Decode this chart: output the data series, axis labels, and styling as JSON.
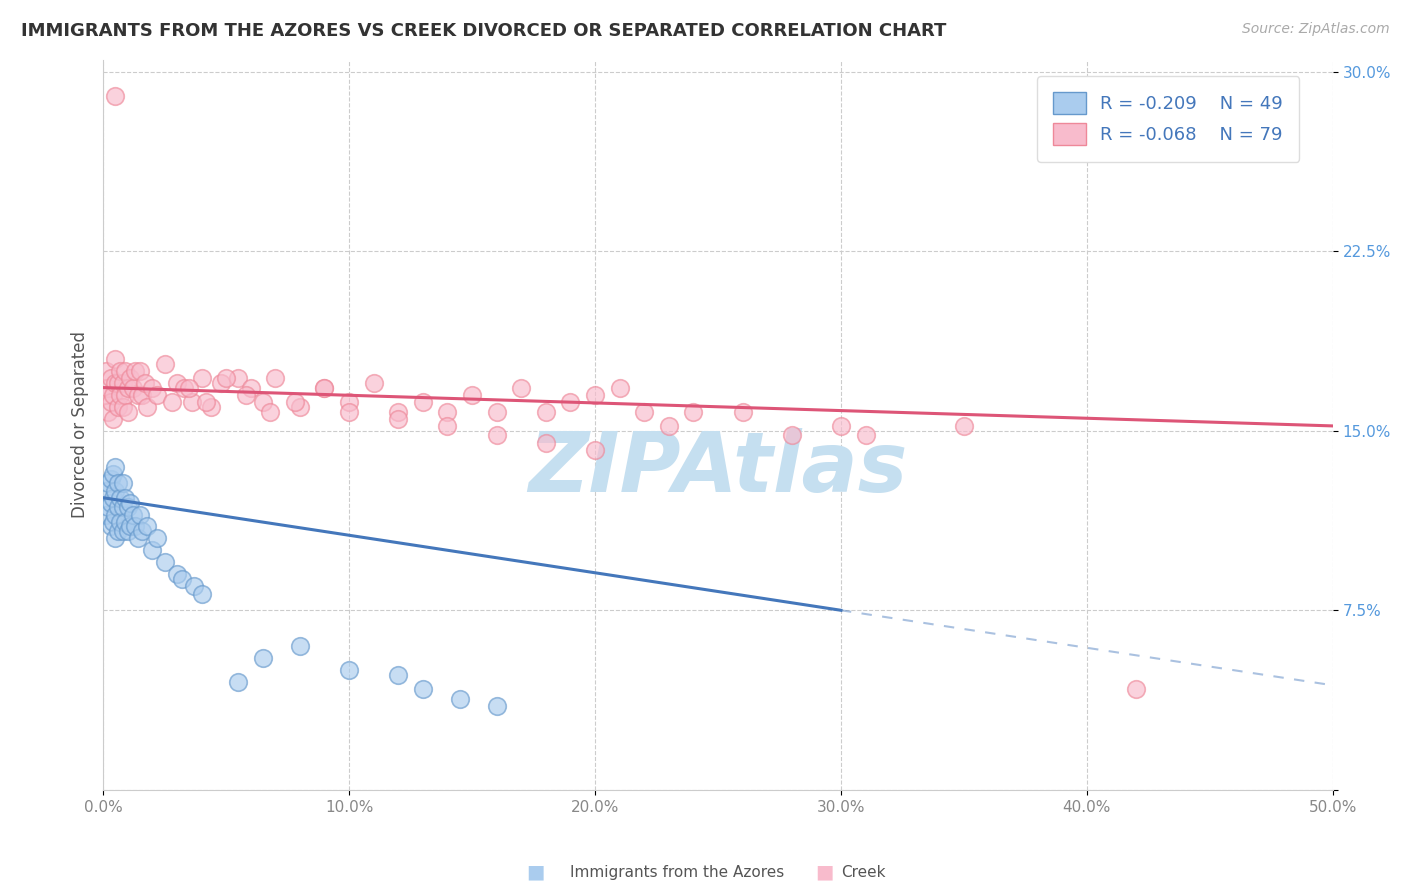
{
  "title": "IMMIGRANTS FROM THE AZORES VS CREEK DIVORCED OR SEPARATED CORRELATION CHART",
  "source_text": "Source: ZipAtlas.com",
  "ylabel": "Divorced or Separated",
  "xlim": [
    0.0,
    0.5
  ],
  "ylim": [
    0.0,
    0.305
  ],
  "xticks": [
    0.0,
    0.1,
    0.2,
    0.3,
    0.4,
    0.5
  ],
  "yticks": [
    0.0,
    0.075,
    0.15,
    0.225,
    0.3
  ],
  "xticklabels": [
    "0.0%",
    "10.0%",
    "20.0%",
    "30.0%",
    "40.0%",
    "50.0%"
  ],
  "yticklabels": [
    "",
    "7.5%",
    "15.0%",
    "22.5%",
    "30.0%"
  ],
  "legend_label1": "Immigrants from the Azores",
  "legend_label2": "Creek",
  "R1": "-0.209",
  "N1": "49",
  "R2": "-0.068",
  "N2": "79",
  "color_blue_fill": "#aaccee",
  "color_blue_edge": "#6699cc",
  "color_pink_fill": "#f8bbcc",
  "color_pink_edge": "#ee8899",
  "color_blue_line": "#4477bb",
  "color_pink_line": "#dd5577",
  "watermark": "ZIPAtlas",
  "watermark_color": "#c5dff0",
  "background_color": "#ffffff",
  "title_color": "#333333",
  "axis_label_color": "#555555",
  "grid_color": "#cccccc",
  "tick_color_y": "#5599dd",
  "tick_color_x": "#888888",
  "azores_x": [
    0.001,
    0.001,
    0.002,
    0.002,
    0.003,
    0.003,
    0.003,
    0.004,
    0.004,
    0.004,
    0.005,
    0.005,
    0.005,
    0.005,
    0.006,
    0.006,
    0.006,
    0.007,
    0.007,
    0.008,
    0.008,
    0.008,
    0.009,
    0.009,
    0.01,
    0.01,
    0.011,
    0.011,
    0.012,
    0.013,
    0.014,
    0.015,
    0.016,
    0.018,
    0.02,
    0.022,
    0.025,
    0.03,
    0.032,
    0.037,
    0.04,
    0.055,
    0.065,
    0.08,
    0.1,
    0.12,
    0.13,
    0.145,
    0.16
  ],
  "azores_y": [
    0.115,
    0.125,
    0.118,
    0.128,
    0.11,
    0.12,
    0.13,
    0.112,
    0.122,
    0.132,
    0.105,
    0.115,
    0.125,
    0.135,
    0.108,
    0.118,
    0.128,
    0.112,
    0.122,
    0.108,
    0.118,
    0.128,
    0.112,
    0.122,
    0.108,
    0.118,
    0.11,
    0.12,
    0.115,
    0.11,
    0.105,
    0.115,
    0.108,
    0.11,
    0.1,
    0.105,
    0.095,
    0.09,
    0.088,
    0.085,
    0.082,
    0.045,
    0.055,
    0.06,
    0.05,
    0.048,
    0.042,
    0.038,
    0.035
  ],
  "creek_x": [
    0.001,
    0.001,
    0.002,
    0.002,
    0.003,
    0.003,
    0.004,
    0.004,
    0.005,
    0.005,
    0.006,
    0.006,
    0.007,
    0.007,
    0.008,
    0.008,
    0.009,
    0.009,
    0.01,
    0.01,
    0.011,
    0.012,
    0.013,
    0.014,
    0.015,
    0.016,
    0.017,
    0.018,
    0.02,
    0.022,
    0.025,
    0.028,
    0.03,
    0.033,
    0.036,
    0.04,
    0.044,
    0.048,
    0.055,
    0.06,
    0.065,
    0.07,
    0.08,
    0.09,
    0.1,
    0.11,
    0.12,
    0.13,
    0.14,
    0.15,
    0.16,
    0.17,
    0.18,
    0.19,
    0.2,
    0.21,
    0.22,
    0.23,
    0.24,
    0.26,
    0.28,
    0.3,
    0.31,
    0.035,
    0.042,
    0.05,
    0.058,
    0.068,
    0.078,
    0.09,
    0.1,
    0.12,
    0.14,
    0.16,
    0.18,
    0.2,
    0.42,
    0.35,
    0.005
  ],
  "creek_y": [
    0.165,
    0.175,
    0.158,
    0.168,
    0.162,
    0.172,
    0.155,
    0.165,
    0.17,
    0.18,
    0.16,
    0.17,
    0.165,
    0.175,
    0.16,
    0.17,
    0.165,
    0.175,
    0.158,
    0.168,
    0.172,
    0.168,
    0.175,
    0.165,
    0.175,
    0.165,
    0.17,
    0.16,
    0.168,
    0.165,
    0.178,
    0.162,
    0.17,
    0.168,
    0.162,
    0.172,
    0.16,
    0.17,
    0.172,
    0.168,
    0.162,
    0.172,
    0.16,
    0.168,
    0.162,
    0.17,
    0.158,
    0.162,
    0.158,
    0.165,
    0.158,
    0.168,
    0.158,
    0.162,
    0.165,
    0.168,
    0.158,
    0.152,
    0.158,
    0.158,
    0.148,
    0.152,
    0.148,
    0.168,
    0.162,
    0.172,
    0.165,
    0.158,
    0.162,
    0.168,
    0.158,
    0.155,
    0.152,
    0.148,
    0.145,
    0.142,
    0.042,
    0.152,
    0.29
  ],
  "az_trend_x0": 0.0,
  "az_trend_y0": 0.122,
  "az_trend_x1": 0.3,
  "az_trend_y1": 0.075,
  "cr_trend_x0": 0.0,
  "cr_trend_y0": 0.168,
  "cr_trend_x1": 0.5,
  "cr_trend_y1": 0.152
}
